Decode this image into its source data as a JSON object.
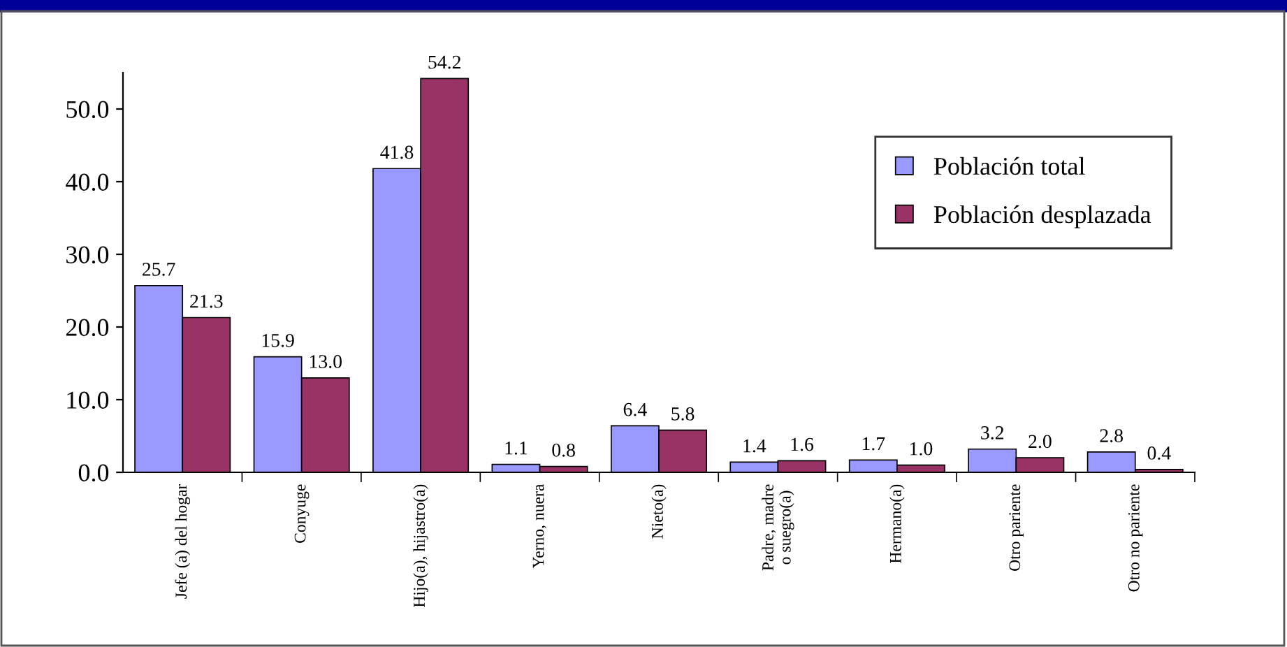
{
  "chart_data": {
    "type": "bar",
    "categories": [
      "Jefe (a) del hogar",
      "Conyuge",
      "Hijo(a), hijastro(a)",
      "Yerno, nuera",
      "Nieto(a)",
      "Padre, madre o suegro(a)",
      "Hermano(a)",
      "Otro pariente",
      "Otro no pariente"
    ],
    "series": [
      {
        "name": "Población total",
        "color": "#9999ff",
        "values": [
          25.7,
          15.9,
          41.8,
          1.1,
          6.4,
          1.4,
          1.7,
          3.2,
          2.8
        ],
        "value_labels": [
          "25.7",
          "15.9",
          "41.8",
          "1.1",
          "6.4",
          "1.4",
          "1.7",
          "3.2",
          "2.8"
        ]
      },
      {
        "name": "Población desplazada",
        "color": "#993366",
        "values": [
          21.3,
          13.0,
          54.2,
          0.8,
          5.8,
          1.6,
          1.0,
          2.0,
          0.4
        ],
        "value_labels": [
          "21.3",
          "13.0",
          "54.2",
          "0.8",
          "5.8",
          "1.6",
          "1.0",
          "2.0",
          "0.4"
        ]
      }
    ],
    "ylim": [
      0,
      55
    ],
    "yticks": [
      {
        "value": 0,
        "label": "0.0"
      },
      {
        "value": 10,
        "label": "10.0"
      },
      {
        "value": 20,
        "label": "20.0"
      },
      {
        "value": 30,
        "label": "30.0"
      },
      {
        "value": 40,
        "label": "40.0"
      },
      {
        "value": 50,
        "label": "50.0"
      }
    ],
    "grid": false,
    "legend": "right"
  }
}
